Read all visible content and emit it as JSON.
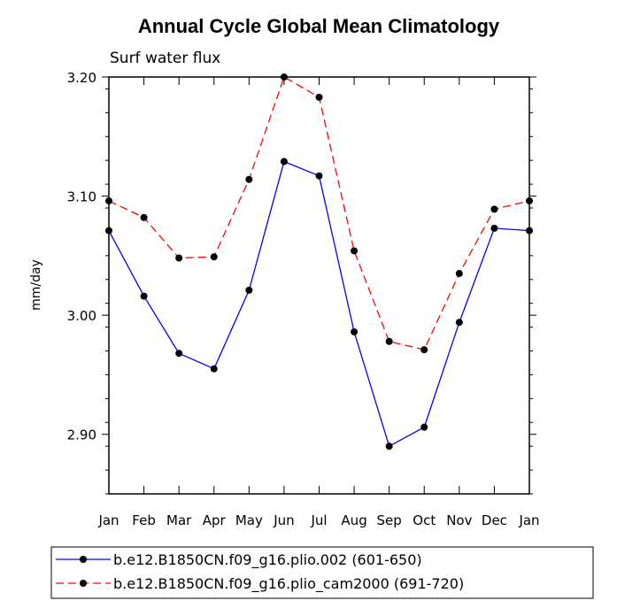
{
  "chart_data": {
    "type": "line",
    "title": "Annual Cycle Global Mean Climatology",
    "subtitle": "Surf water flux",
    "xlabel": "",
    "ylabel": "mm/day",
    "categories": [
      "Jan",
      "Feb",
      "Mar",
      "Apr",
      "May",
      "Jun",
      "Jul",
      "Aug",
      "Sep",
      "Oct",
      "Nov",
      "Dec",
      "Jan"
    ],
    "ylim": [
      2.85,
      3.2
    ],
    "yticks": [
      2.9,
      3.0,
      3.1,
      3.2
    ],
    "ytick_labels": [
      "2.90",
      "3.00",
      "3.10",
      "3.20"
    ],
    "series": [
      {
        "name": "b.e12.B1850CN.f09_g16.plio.002 (601-650)",
        "color": "#0000ff",
        "dash": "solid",
        "values": [
          3.071,
          3.016,
          2.968,
          2.955,
          3.021,
          3.129,
          3.117,
          2.986,
          2.89,
          2.906,
          2.994,
          3.073,
          3.071
        ]
      },
      {
        "name": "b.e12.B1850CN.f09_g16.plio_cam2000 (691-720)",
        "color": "#ff0000",
        "dash": "dashed",
        "values": [
          3.096,
          3.082,
          3.048,
          3.049,
          3.114,
          3.2,
          3.183,
          3.054,
          2.978,
          2.971,
          3.035,
          3.089,
          3.096
        ]
      }
    ]
  }
}
